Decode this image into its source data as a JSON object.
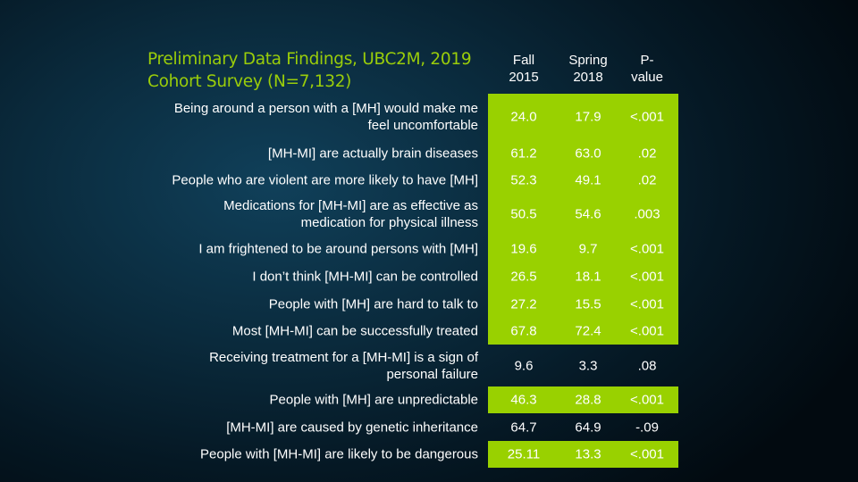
{
  "title": {
    "line1": "Preliminary Data Findings, UBC2M, 2019",
    "line2": "Cohort Survey (N=7,132)"
  },
  "headers": [
    {
      "line1": "Fall",
      "line2": "2015"
    },
    {
      "line1": "Spring",
      "line2": "2018"
    },
    {
      "line1": "P-",
      "line2": "value"
    }
  ],
  "highlight_color": "#99d100",
  "rows": [
    {
      "label1": "Being around a person with a [MH] would make me",
      "label2": "feel uncomfortable",
      "fall": "24.0",
      "spring": "17.9",
      "p": "<.001",
      "highlighted": true
    },
    {
      "label1": "[MH-MI]  are actually brain diseases",
      "label2": "",
      "fall": "61.2",
      "spring": "63.0",
      "p": ".02",
      "highlighted": true
    },
    {
      "label1": "People who are violent are more likely to have [MH]",
      "label2": "",
      "fall": "52.3",
      "spring": "49.1",
      "p": ".02",
      "highlighted": true
    },
    {
      "label1": "Medications for [MH-MI]  are as effective as",
      "label2": "medication for physical illness",
      "fall": "50.5",
      "spring": "54.6",
      "p": ".003",
      "highlighted": true
    },
    {
      "label1": "I am frightened to be around persons with [MH]",
      "label2": "",
      "fall": "19.6",
      "spring": "9.7",
      "p": "<.001",
      "highlighted": true
    },
    {
      "label1": "I don’t think [MH-MI]  can be controlled",
      "label2": "",
      "fall": "26.5",
      "spring": "18.1",
      "p": "<.001",
      "highlighted": true
    },
    {
      "label1": "People with [MH] are hard to talk to",
      "label2": "",
      "fall": "27.2",
      "spring": "15.5",
      "p": "<.001",
      "highlighted": true
    },
    {
      "label1": "Most [MH-MI]  can be successfully treated",
      "label2": "",
      "fall": "67.8",
      "spring": "72.4",
      "p": "<.001",
      "highlighted": true
    },
    {
      "label1": "Receiving treatment  for a [MH-MI]  is a sign of",
      "label2": "personal failure",
      "fall": "9.6",
      "spring": "3.3",
      "p": ".08",
      "highlighted": false
    },
    {
      "label1": "People with [MH] are unpredictable",
      "label2": "",
      "fall": "46.3",
      "spring": "28.8",
      "p": "<.001",
      "highlighted": true
    },
    {
      "label1": "[MH-MI]  are caused by genetic inheritance",
      "label2": "",
      "fall": "64.7",
      "spring": "64.9",
      "p": "-.09",
      "highlighted": false
    },
    {
      "label1": "People with [MH-MI]  are likely to be dangerous",
      "label2": "",
      "fall": "25.11",
      "spring": "13.3",
      "p": "<.001",
      "highlighted": true
    }
  ]
}
